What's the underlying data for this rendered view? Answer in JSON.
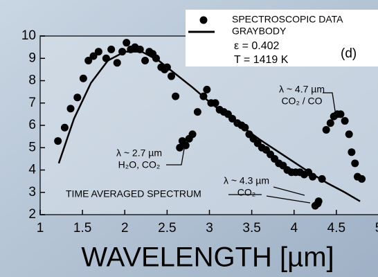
{
  "chart_data": {
    "type": "scatter",
    "xlabel": "WAVELENGTH [µm]",
    "xlim": [
      1,
      5
    ],
    "xticks": [
      1,
      1.5,
      2,
      2.5,
      3,
      3.5,
      4,
      4.5,
      5
    ],
    "ylim": [
      2,
      10
    ],
    "yticks": [
      2,
      3,
      4,
      5,
      6,
      7,
      8,
      9,
      10
    ],
    "series": [
      {
        "name": "SPECTROSCOPIC DATA",
        "color": "#000000",
        "mode": "markers",
        "x": [
          1.21,
          1.29,
          1.36,
          1.44,
          1.51,
          1.57,
          1.63,
          1.69,
          1.78,
          1.84,
          1.91,
          1.97,
          2.02,
          2.07,
          2.12,
          2.18,
          2.24,
          2.29,
          2.33,
          2.37,
          2.43,
          2.47,
          2.5,
          2.55,
          2.6,
          2.65,
          2.68,
          2.72,
          2.76,
          2.8,
          2.86,
          2.93,
          2.97,
          3.02,
          3.07,
          3.12,
          3.17,
          3.22,
          3.27,
          3.33,
          3.38,
          3.42,
          3.47,
          3.52,
          3.57,
          3.62,
          3.67,
          3.72,
          3.77,
          3.82,
          3.87,
          3.92,
          3.97,
          4.02,
          4.07,
          4.12,
          4.17,
          4.22,
          4.25,
          4.28,
          4.29,
          4.33,
          4.38,
          4.43,
          4.47,
          4.51,
          4.55,
          4.6,
          4.65,
          4.68,
          4.72,
          4.75,
          4.8
        ],
        "values": [
          5.3,
          5.9,
          6.75,
          7.25,
          8.1,
          8.9,
          9.1,
          9.3,
          9.0,
          9.4,
          8.8,
          9.3,
          9.7,
          9.4,
          9.5,
          9.4,
          8.9,
          9.3,
          9.2,
          9.0,
          8.6,
          8.5,
          8.6,
          8.2,
          7.3,
          5.0,
          5.3,
          5.1,
          5.4,
          5.6,
          6.6,
          7.3,
          7.6,
          7.0,
          7.0,
          6.7,
          6.6,
          6.5,
          6.3,
          6.1,
          6.0,
          5.9,
          5.6,
          5.4,
          5.2,
          5.0,
          4.9,
          4.7,
          4.5,
          4.3,
          4.2,
          4.0,
          3.9,
          3.9,
          3.9,
          3.8,
          3.9,
          3.7,
          2.4,
          2.5,
          2.6,
          3.6,
          5.8,
          6.1,
          6.4,
          6.5,
          6.5,
          6.2,
          5.6,
          4.8,
          4.3,
          3.7,
          3.6
        ]
      },
      {
        "name": "GRAYBODY",
        "color": "#000000",
        "mode": "line",
        "x": [
          1.22,
          1.4,
          1.6,
          1.8,
          2.0,
          2.2,
          2.4,
          2.6,
          2.8,
          3.0,
          3.2,
          3.4,
          3.6,
          3.8,
          4.0,
          4.2,
          4.4,
          4.6,
          4.78
        ],
        "values": [
          4.3,
          6.3,
          7.9,
          8.9,
          9.3,
          9.3,
          8.9,
          8.3,
          7.7,
          7.05,
          6.45,
          5.9,
          5.35,
          4.85,
          4.35,
          3.85,
          3.4,
          3.0,
          2.6
        ]
      }
    ],
    "legend_notes": [
      "ε = 0.402",
      "T = 1419 K"
    ],
    "panel_label": "(d)",
    "annotations": [
      {
        "lines": [
          "λ ~ 4.7 µm",
          "CO₂ / CO"
        ]
      },
      {
        "lines": [
          "λ ~ 2.7 µm",
          "H₂O, CO₂"
        ]
      },
      {
        "lines": [
          "λ ~ 4.3 µm",
          "CO₂"
        ]
      },
      {
        "lines": [
          "TIME AVERAGED SPECTRUM"
        ]
      }
    ]
  }
}
